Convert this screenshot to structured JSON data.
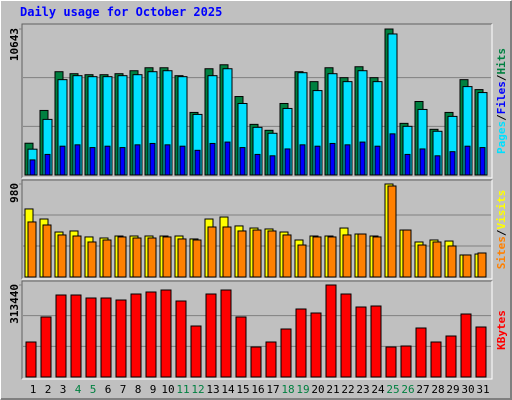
{
  "chart_data": [
    {
      "type": "bar",
      "title": "Daily usage for October 2025",
      "legend_separator": "/",
      "ylim": [
        0,
        10643
      ],
      "yticks": [
        10643
      ],
      "series": [
        {
          "name": "Hits",
          "color": "#008040",
          "values": [
            2317,
            4706,
            7530,
            7385,
            7312,
            7312,
            7385,
            7602,
            7819,
            7819,
            7240,
            4561,
            7747,
            8036,
            5720,
            3692,
            3258,
            5213,
            7530,
            6806,
            7819,
            7095,
            7892,
            7095,
            10643,
            3765,
            5358,
            3330,
            4561,
            6950,
            6226
          ]
        },
        {
          "name": "Files",
          "color": "#0000ff",
          "values": [
            1100,
            1500,
            2100,
            2200,
            2000,
            2100,
            2000,
            2200,
            2300,
            2200,
            2100,
            1800,
            2300,
            2400,
            2000,
            1500,
            1400,
            1900,
            2200,
            2100,
            2300,
            2200,
            2400,
            2100,
            3000,
            1500,
            1900,
            1400,
            1700,
            2100,
            2000
          ]
        },
        {
          "name": "Pages",
          "color": "#00e0ff",
          "values": [
            1882,
            4054,
            6950,
            7240,
            7168,
            7168,
            7240,
            7312,
            7530,
            7602,
            7168,
            4416,
            7240,
            7747,
            5213,
            3475,
            3041,
            4851,
            7457,
            6154,
            7385,
            6806,
            7602,
            6806,
            10281,
            3548,
            4778,
            3186,
            4272,
            6444,
            6009
          ]
        }
      ]
    },
    {
      "type": "bar",
      "legend_separator": "/",
      "ylim": [
        0,
        980
      ],
      "yticks": [
        980
      ],
      "series": [
        {
          "name": "Visits",
          "color": "#ffff00",
          "values": [
            717,
            611,
            474,
            485,
            422,
            411,
            432,
            432,
            432,
            432,
            432,
            401,
            611,
            632,
            538,
            516,
            506,
            474,
            390,
            432,
            432,
            516,
            453,
            432,
            980,
            495,
            369,
            390,
            379,
            232,
            242
          ]
        },
        {
          "name": "Sites",
          "color": "#ff8000",
          "values": [
            580,
            548,
            443,
            432,
            369,
            390,
            422,
            411,
            411,
            422,
            401,
            390,
            527,
            527,
            485,
            495,
            485,
            443,
            337,
            422,
            422,
            443,
            453,
            422,
            959,
            495,
            337,
            369,
            327,
            232,
            253
          ]
        }
      ]
    },
    {
      "type": "bar",
      "ylim": [
        0,
        313440
      ],
      "yticks": [
        313440
      ],
      "categories": [
        "1",
        "2",
        "3",
        "4",
        "5",
        "6",
        "7",
        "8",
        "9",
        "10",
        "11",
        "12",
        "13",
        "14",
        "15",
        "16",
        "17",
        "18",
        "19",
        "20",
        "21",
        "22",
        "23",
        "24",
        "25",
        "26",
        "27",
        "28",
        "29",
        "30",
        "31"
      ],
      "category_colors": [
        "#000000",
        "#000000",
        "#000000",
        "#008040",
        "#008040",
        "#000000",
        "#000000",
        "#000000",
        "#000000",
        "#000000",
        "#008040",
        "#008040",
        "#000000",
        "#000000",
        "#000000",
        "#000000",
        "#000000",
        "#008040",
        "#008040",
        "#000000",
        "#000000",
        "#000000",
        "#000000",
        "#000000",
        "#008040",
        "#008040",
        "#000000",
        "#000000",
        "#000000",
        "#000000",
        "#000000"
      ],
      "series": [
        {
          "name": "KBytes",
          "color": "#ff0000",
          "values": [
            119245,
            204420,
            279374,
            279374,
            269153,
            269153,
            262339,
            282781,
            289595,
            296409,
            258932,
            173757,
            282781,
            296409,
            204420,
            102210,
            119245,
            163536,
            231676,
            218048,
            313440,
            282781,
            238490,
            241897,
            102210,
            105617,
            166943,
            119245,
            139687,
            214641,
            170350
          ]
        }
      ]
    }
  ]
}
